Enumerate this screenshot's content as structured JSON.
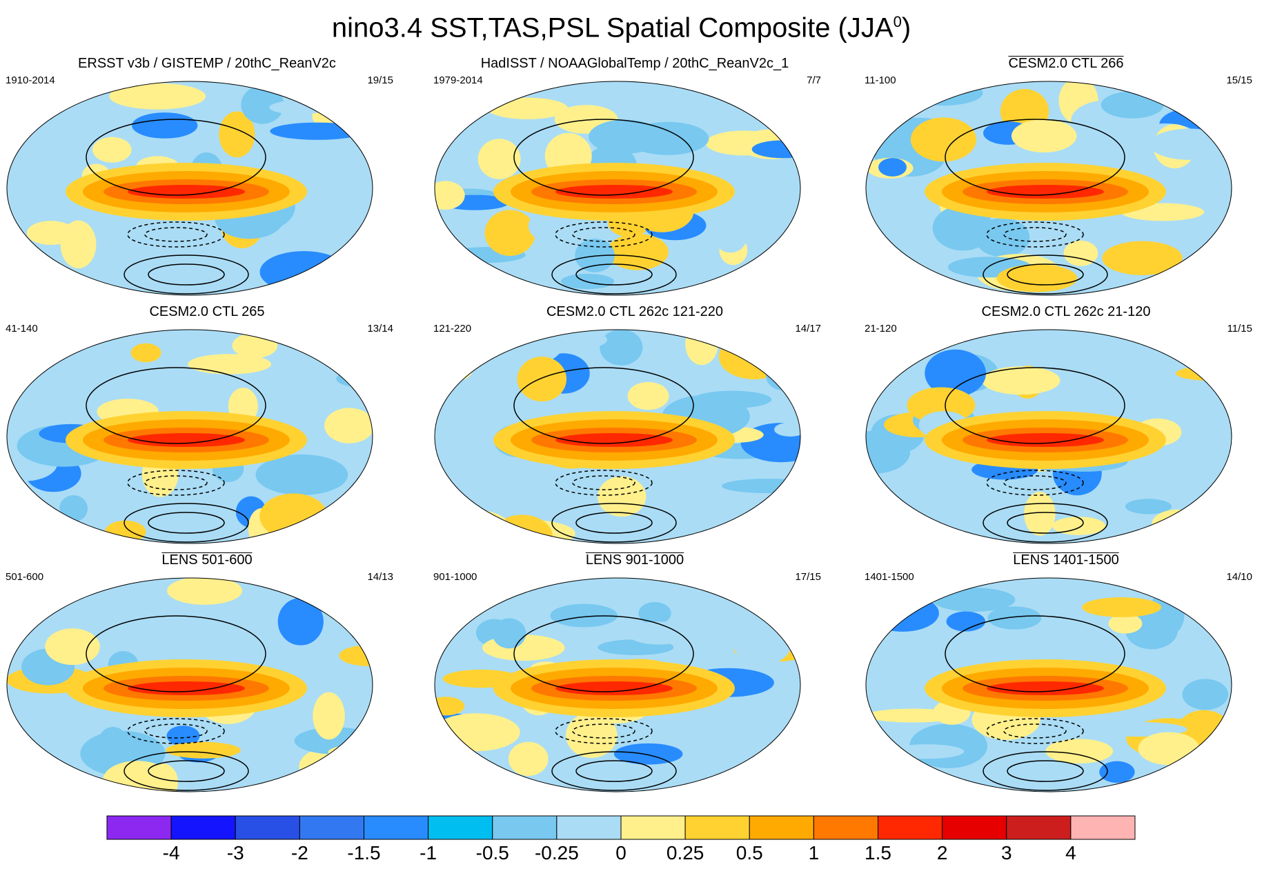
{
  "title": {
    "main": "nino3.4 SST,TAS,PSL Spatial Composite (JJA",
    "sup": "0",
    "close": ")"
  },
  "panels": [
    {
      "title": "ERSST v3b / GISTEMP / 20thC_ReanV2c",
      "years": "1910-2014",
      "count": "19/15",
      "underline": false
    },
    {
      "title": "HadISST / NOAAGlobalTemp / 20thC_ReanV2c_1",
      "years": "1979-2014",
      "count": "7/7",
      "underline": false
    },
    {
      "title": "CESM2.0 CTL 266",
      "years": "11-100",
      "count": "15/15",
      "underline": true
    },
    {
      "title": "CESM2.0 CTL 265",
      "years": "41-140",
      "count": "13/14",
      "underline": false
    },
    {
      "title": "CESM2.0 CTL 262c 121-220",
      "years": "121-220",
      "count": "14/17",
      "underline": false
    },
    {
      "title": "CESM2.0 CTL 262c 21-120",
      "years": "21-120",
      "count": "11/15",
      "underline": false
    },
    {
      "title": "LENS 501-600",
      "years": "501-600",
      "count": "14/13",
      "underline": true
    },
    {
      "title": "LENS 901-1000",
      "years": "901-1000",
      "count": "17/15",
      "underline": true
    },
    {
      "title": "LENS 1401-1500",
      "years": "1401-1500",
      "count": "14/10",
      "underline": true
    }
  ],
  "chart_data": {
    "type": "heatmap",
    "title": "nino3.4 SST,TAS,PSL Spatial Composite (JJA0)",
    "projection": "Robinson global maps (filled: SST/TAS anomaly; contours: PSL)",
    "colorbar": {
      "levels": [
        "-4",
        "-3",
        "-2",
        "-1.5",
        "-1",
        "-0.5",
        "-0.25",
        "0",
        "0.25",
        "0.5",
        "1",
        "1.5",
        "2",
        "3",
        "4"
      ],
      "colors": [
        "#8c28f0",
        "#1414ff",
        "#2850e6",
        "#3278f0",
        "#288cff",
        "#00bef0",
        "#78c8f0",
        "#aadcf5",
        "#fff08c",
        "#ffd232",
        "#ffaa00",
        "#ff7800",
        "#ff2800",
        "#e60000",
        "#cd1e1e",
        "#ffb4b4"
      ]
    },
    "panels": [
      {
        "name": "ERSST v3b / GISTEMP / 20thC_ReanV2c",
        "years": "1910-2014",
        "count": "19/15"
      },
      {
        "name": "HadISST / NOAAGlobalTemp / 20thC_ReanV2c_1",
        "years": "1979-2014",
        "count": "7/7"
      },
      {
        "name": "CESM2.0 CTL 266",
        "years": "11-100",
        "count": "15/15"
      },
      {
        "name": "CESM2.0 CTL 265",
        "years": "41-140",
        "count": "13/14"
      },
      {
        "name": "CESM2.0 CTL 262c 121-220",
        "years": "121-220",
        "count": "14/17"
      },
      {
        "name": "CESM2.0 CTL 262c 21-120",
        "years": "21-120",
        "count": "11/15"
      },
      {
        "name": "LENS 501-600",
        "years": "501-600",
        "count": "14/13"
      },
      {
        "name": "LENS 901-1000",
        "years": "901-1000",
        "count": "17/15"
      },
      {
        "name": "LENS 1401-1500",
        "years": "1401-1500",
        "count": "14/10"
      }
    ]
  }
}
